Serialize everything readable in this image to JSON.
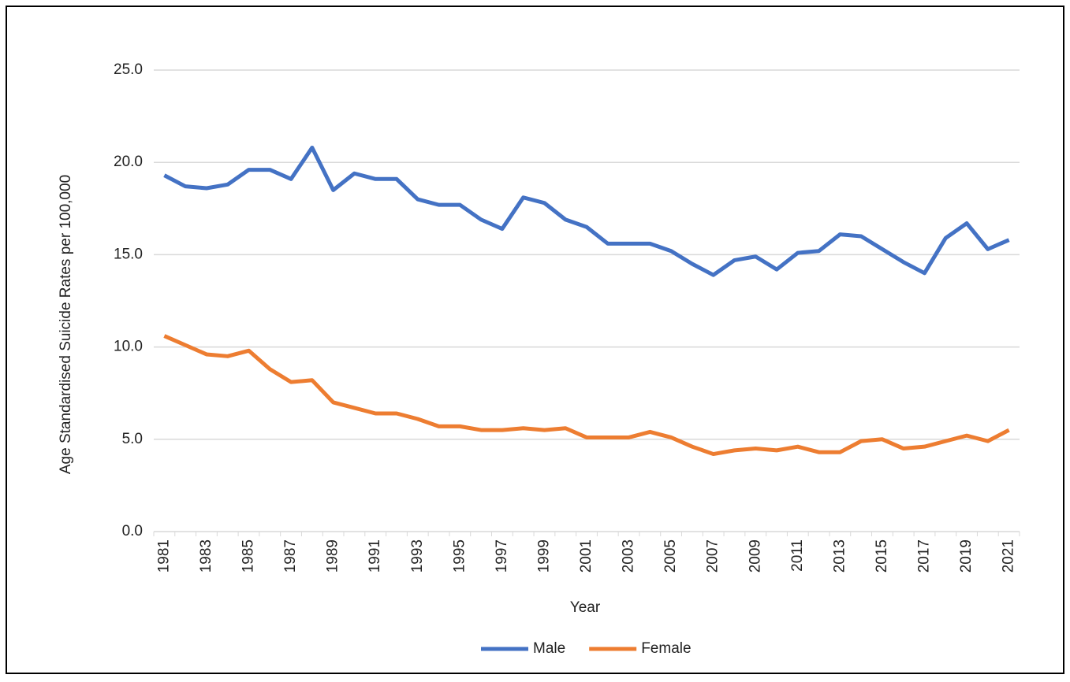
{
  "chart_data": {
    "type": "line",
    "x_label": "Year",
    "y_label": "Age Standardised Suicide Rates per 100,000",
    "categories": [
      "1981",
      null,
      "1983",
      null,
      "1985",
      null,
      "1987",
      null,
      "1989",
      null,
      "1991",
      null,
      "1993",
      null,
      "1995",
      null,
      "1997",
      null,
      "1999",
      null,
      "2001",
      null,
      "2003",
      null,
      "2005",
      null,
      "2007",
      null,
      "2009",
      null,
      "2011",
      null,
      "2013",
      null,
      "2015",
      null,
      "2017",
      null,
      "2019",
      null,
      "2021"
    ],
    "series": [
      {
        "name": "Male",
        "color": "#4472c4",
        "values": [
          19.3,
          18.7,
          18.6,
          18.8,
          19.6,
          19.6,
          19.1,
          20.8,
          18.5,
          19.4,
          19.1,
          19.1,
          18.0,
          17.7,
          17.7,
          16.9,
          16.4,
          18.1,
          17.8,
          16.9,
          16.5,
          15.6,
          15.6,
          15.6,
          15.2,
          14.5,
          13.9,
          14.7,
          14.9,
          14.2,
          15.1,
          15.2,
          16.1,
          16.0,
          15.3,
          14.6,
          14.0,
          15.9,
          16.7,
          15.3,
          15.8
        ]
      },
      {
        "name": "Female",
        "color": "#ed7d31",
        "values": [
          10.6,
          10.1,
          9.6,
          9.5,
          9.8,
          8.8,
          8.1,
          8.2,
          7.0,
          6.7,
          6.4,
          6.4,
          6.1,
          5.7,
          5.7,
          5.5,
          5.5,
          5.6,
          5.5,
          5.6,
          5.1,
          5.1,
          5.1,
          5.4,
          5.1,
          4.6,
          4.2,
          4.4,
          4.5,
          4.4,
          4.6,
          4.3,
          4.3,
          4.9,
          5.0,
          4.5,
          4.6,
          4.9,
          5.2,
          4.9,
          5.5
        ]
      }
    ],
    "ylim": [
      0,
      25
    ],
    "yticks": [
      {
        "value": 0,
        "label": "0.0"
      },
      {
        "value": 5,
        "label": "5.0"
      },
      {
        "value": 10,
        "label": "10.0"
      },
      {
        "value": 15,
        "label": "15.0"
      },
      {
        "value": 20,
        "label": "20.0"
      },
      {
        "value": 25,
        "label": "25.0"
      }
    ],
    "grid": true,
    "legend": "bottom"
  }
}
